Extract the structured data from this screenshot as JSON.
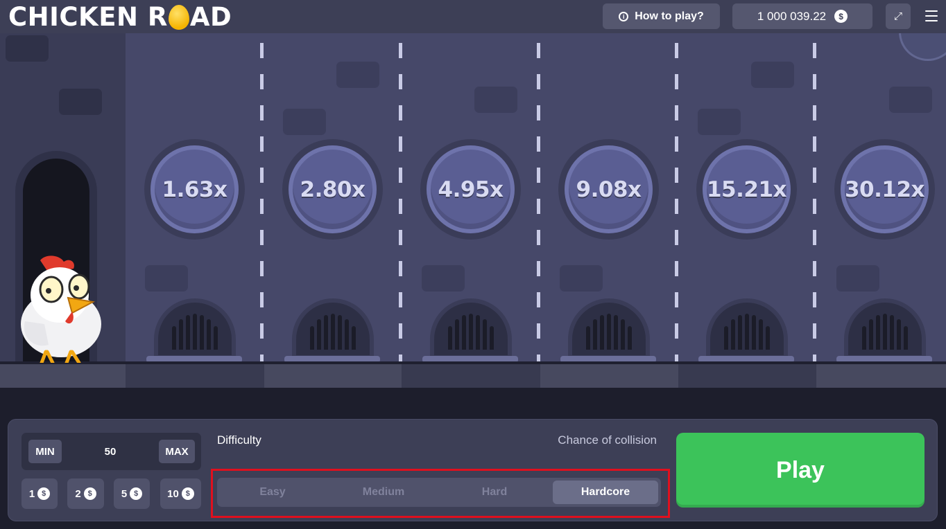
{
  "header": {
    "logo_part1": "CHICKEN R",
    "logo_part2": "AD",
    "how_to_play": "How to play?",
    "balance": "1 000 039.22",
    "currency_symbol": "$"
  },
  "lanes": [
    {
      "multiplier": "1.63x"
    },
    {
      "multiplier": "2.80x"
    },
    {
      "multiplier": "4.95x"
    },
    {
      "multiplier": "9.08x"
    },
    {
      "multiplier": "15.21x"
    },
    {
      "multiplier": "30.12x"
    }
  ],
  "bet": {
    "min_label": "MIN",
    "value": "50",
    "max_label": "MAX",
    "quick_amounts": [
      "1",
      "2",
      "5",
      "10"
    ]
  },
  "difficulty": {
    "label": "Difficulty",
    "chance_label": "Chance of collision",
    "options": [
      "Easy",
      "Medium",
      "Hard",
      "Hardcore"
    ],
    "selected": "Hardcore"
  },
  "play_label": "Play",
  "colors": {
    "play": "#3cc35a",
    "highlight": "#e0101e",
    "panel": "#3d3f56",
    "scene": "#464869"
  }
}
